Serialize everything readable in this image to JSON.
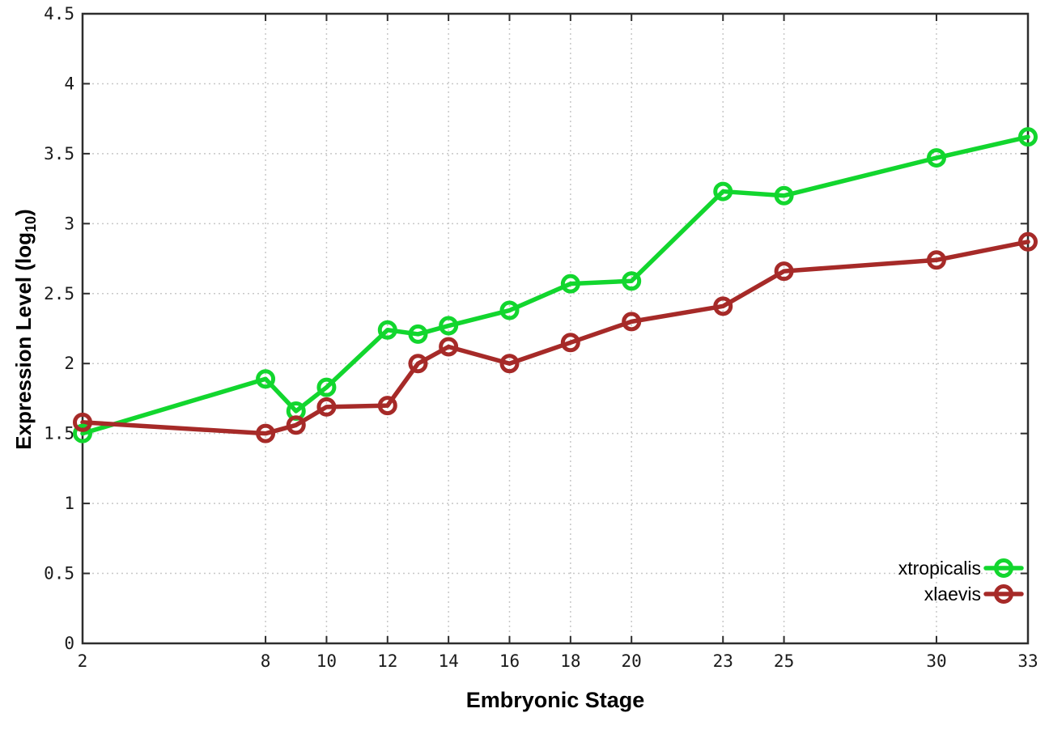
{
  "chart_data": {
    "type": "line",
    "title": "",
    "xlabel": "Embryonic Stage",
    "ylabel": "Expression Level (log10)",
    "ylabel_main": "Expression Level (log",
    "ylabel_sub": "10",
    "ylabel_close": ")",
    "xlim": [
      2,
      33
    ],
    "ylim": [
      0,
      4.5
    ],
    "x_ticks": [
      2,
      8,
      10,
      12,
      14,
      16,
      18,
      20,
      23,
      25,
      30,
      33
    ],
    "y_ticks": [
      0,
      0.5,
      1,
      1.5,
      2,
      2.5,
      3,
      3.5,
      4,
      4.5
    ],
    "grid": true,
    "grid_color": "#c8c8c8",
    "axis_color": "#2d2d2d",
    "legend_position": "bottom-right",
    "x": [
      2,
      8,
      9,
      10,
      12,
      13,
      14,
      16,
      18,
      20,
      23,
      25,
      30,
      33
    ],
    "series": [
      {
        "name": "xtropicalis",
        "color": "#12d62e",
        "marker": "open-circle",
        "values": [
          1.5,
          1.89,
          1.66,
          1.83,
          2.24,
          2.21,
          2.27,
          2.38,
          2.57,
          2.59,
          3.23,
          3.2,
          3.47,
          3.62
        ]
      },
      {
        "name": "xlaevis",
        "color": "#a62a28",
        "marker": "open-circle",
        "values": [
          1.58,
          1.5,
          1.56,
          1.69,
          1.7,
          2.0,
          2.12,
          2.0,
          2.15,
          2.3,
          2.41,
          2.66,
          2.74,
          2.87
        ]
      }
    ]
  }
}
